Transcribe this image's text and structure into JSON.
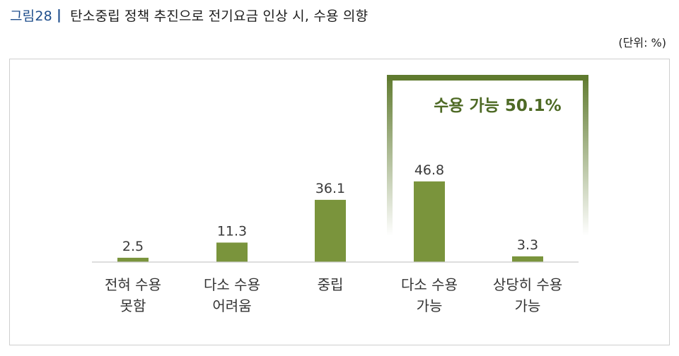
{
  "figure": {
    "label": "그림28",
    "separator": "|",
    "title": "탄소중립 정책 추진으로 전기요금 인상 시, 수용 의향",
    "unit": "(단위: %)"
  },
  "colors": {
    "bar": "#7a943c",
    "highlight_box": "#5f7a2e",
    "highlight_text": "#4e6a25",
    "label_blue": "#1f4e8c"
  },
  "chart_data": {
    "type": "bar",
    "categories": [
      [
        "전혀 수용",
        "못함"
      ],
      [
        "다소 수용",
        "어려움"
      ],
      [
        "중립"
      ],
      [
        "다소 수용",
        "가능"
      ],
      [
        "상당히 수용",
        "가능"
      ]
    ],
    "values": [
      2.5,
      11.3,
      36.1,
      46.8,
      3.3
    ],
    "value_labels": [
      "2.5",
      "11.3",
      "36.1",
      "46.8",
      "3.3"
    ],
    "ylim": [
      0,
      50
    ],
    "grid": false,
    "legend": "none",
    "annotation": {
      "text": "수용 가능 50.1%",
      "covers_categories": [
        3,
        4
      ]
    }
  }
}
